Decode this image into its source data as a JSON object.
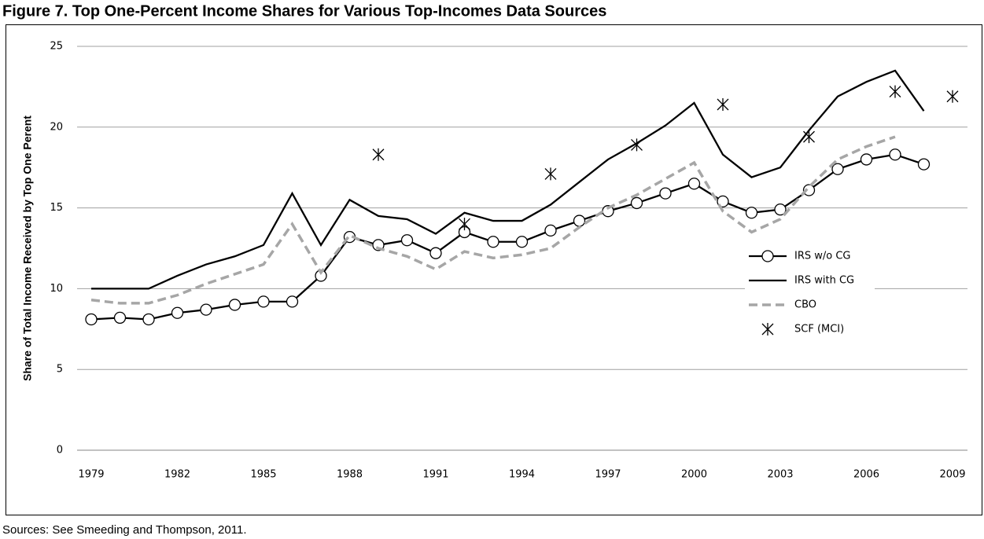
{
  "chart_data": {
    "type": "line",
    "title": "Figure 7. Top One-Percent Income Shares for Various Top-Incomes Data Sources",
    "y_label": "Share of Total Income Received by Top One Perent",
    "source": "Sources: See Smeeding and Thompson, 2011.",
    "x": [
      1979,
      1980,
      1981,
      1982,
      1983,
      1984,
      1985,
      1986,
      1987,
      1988,
      1989,
      1990,
      1991,
      1992,
      1993,
      1994,
      1995,
      1996,
      1997,
      1998,
      1999,
      2000,
      2001,
      2002,
      2003,
      2004,
      2005,
      2006,
      2007,
      2008,
      2009
    ],
    "xlim": [
      1979,
      2009
    ],
    "xticks": [
      1979,
      1982,
      1985,
      1988,
      1991,
      1994,
      1997,
      2000,
      2003,
      2006,
      2009
    ],
    "ylim": [
      0,
      25
    ],
    "yticks": [
      0,
      5,
      10,
      15,
      20,
      25
    ],
    "grid": true,
    "legend": "right",
    "series": [
      {
        "name": "IRS w/o CG",
        "color": "#000000",
        "marker": "circle",
        "line": "solid",
        "values": [
          8.1,
          8.2,
          8.1,
          8.5,
          8.7,
          9.0,
          9.2,
          9.2,
          10.8,
          13.2,
          12.7,
          13.0,
          12.2,
          13.5,
          12.9,
          12.9,
          13.6,
          14.2,
          14.8,
          15.3,
          15.9,
          16.5,
          15.4,
          14.7,
          14.9,
          16.1,
          17.4,
          18.0,
          18.3,
          17.7,
          null
        ]
      },
      {
        "name": "IRS with CG",
        "color": "#000000",
        "marker": "none",
        "line": "solid",
        "values": [
          10.0,
          10.0,
          10.0,
          10.8,
          11.5,
          12.0,
          12.7,
          15.9,
          12.7,
          15.5,
          14.5,
          14.3,
          13.4,
          14.7,
          14.2,
          14.2,
          15.2,
          16.6,
          18.0,
          19.0,
          20.1,
          21.5,
          18.3,
          16.9,
          17.5,
          19.8,
          21.9,
          22.8,
          23.5,
          21.0,
          null
        ]
      },
      {
        "name": "CBO",
        "color": "#a6a6a6",
        "marker": "none",
        "line": "dashed",
        "values": [
          9.3,
          9.1,
          9.1,
          9.6,
          10.3,
          10.9,
          11.5,
          14.0,
          11.0,
          13.3,
          12.5,
          12.0,
          11.2,
          12.3,
          11.9,
          12.1,
          12.5,
          13.8,
          15.0,
          15.8,
          16.8,
          17.8,
          14.8,
          13.5,
          14.3,
          16.3,
          18.0,
          18.8,
          19.4,
          null,
          null
        ]
      },
      {
        "name": "SCF (MCI)",
        "color": "#000000",
        "marker": "asterisk",
        "line": "none",
        "values": [
          null,
          null,
          null,
          null,
          null,
          null,
          null,
          null,
          null,
          null,
          18.3,
          null,
          null,
          14.0,
          null,
          null,
          17.1,
          null,
          null,
          18.9,
          null,
          null,
          21.4,
          null,
          null,
          19.4,
          null,
          null,
          22.2,
          null,
          21.9
        ]
      }
    ]
  }
}
